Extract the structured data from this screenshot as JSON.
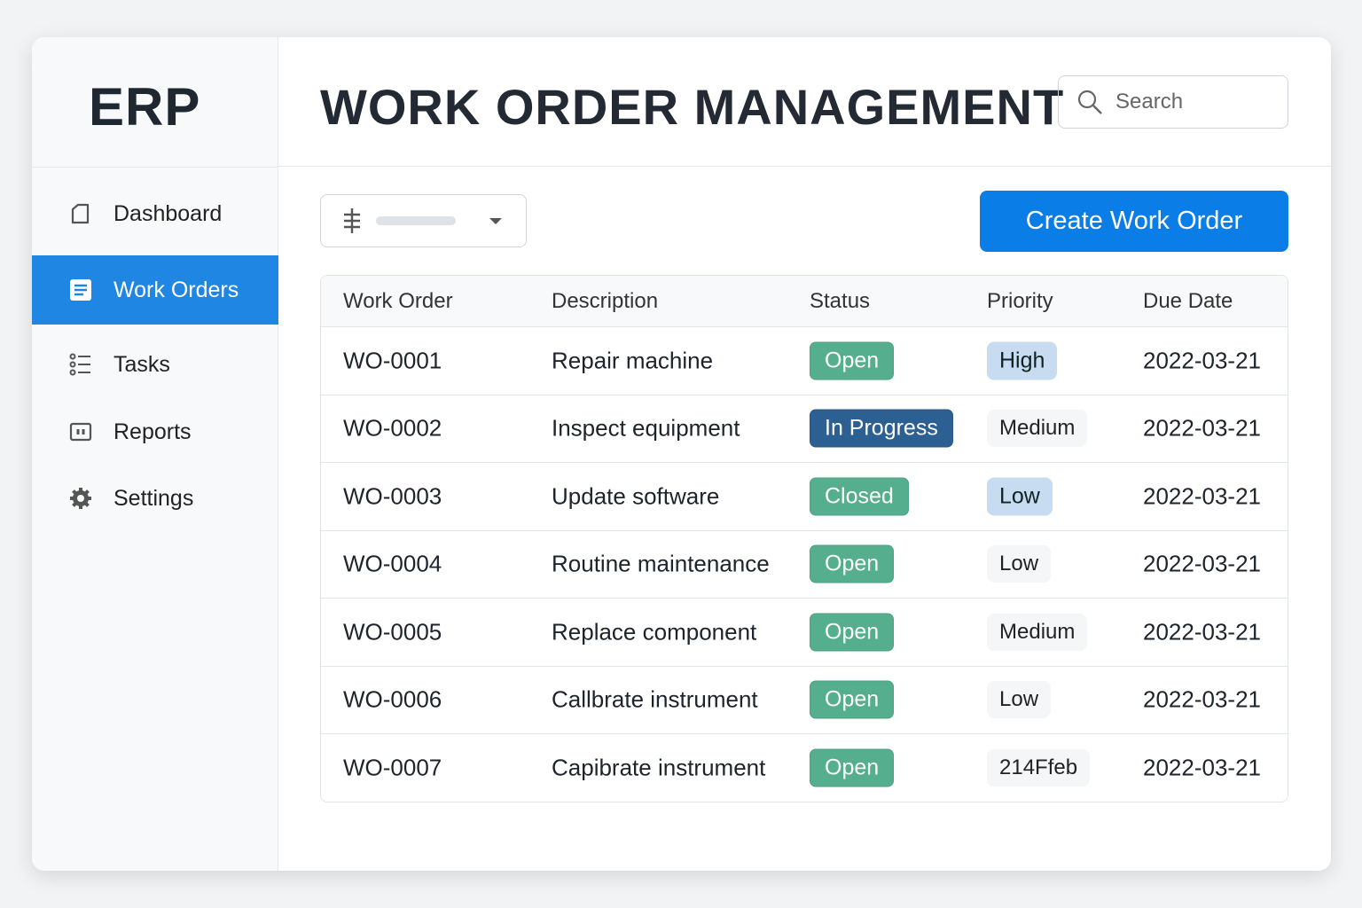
{
  "app": {
    "logo": "ERP",
    "title": "WORK ORDER MANAGEMENT"
  },
  "search": {
    "placeholder": "Search",
    "icon": "search-icon"
  },
  "sidebar": {
    "items": [
      {
        "label": "Dashboard",
        "icon": "document-icon",
        "active": false
      },
      {
        "label": "Work Orders",
        "icon": "work-orders-icon",
        "active": true
      },
      {
        "label": "Tasks",
        "icon": "list-icon",
        "active": false
      },
      {
        "label": "Reports",
        "icon": "reports-icon",
        "active": false
      },
      {
        "label": "Settings",
        "icon": "gear-icon",
        "active": false
      }
    ]
  },
  "toolbar": {
    "create_label": "Create Work Order",
    "filter_icon": "filter-icon"
  },
  "colors": {
    "accent": "#1f86e3",
    "button": "#0b7de6",
    "status_open": "#55ae8d",
    "status_in_progress": "#2c5f92",
    "priority_highlight": "#c8dcf1"
  },
  "table": {
    "headers": [
      "Work Order",
      "Description",
      "Status",
      "Priority",
      "Due Date"
    ],
    "rows": [
      {
        "id": "WO-0001",
        "description": "Repair machine",
        "status": "Open",
        "priority": "High",
        "priority_highlight": true,
        "due": "2022-03-21"
      },
      {
        "id": "WO-0002",
        "description": "Inspect equipment",
        "status": "In Progress",
        "priority": "Medium",
        "priority_highlight": false,
        "due": "2022-03-21"
      },
      {
        "id": "WO-0003",
        "description": "Update software",
        "status": "Closed",
        "priority": "Low",
        "priority_highlight": true,
        "due": "2022-03-21"
      },
      {
        "id": "WO-0004",
        "description": "Routine maintenance",
        "status": "Open",
        "priority": "Low",
        "priority_highlight": false,
        "due": "2022-03-21"
      },
      {
        "id": "WO-0005",
        "description": "Replace component",
        "status": "Open",
        "priority": "Medium",
        "priority_highlight": false,
        "due": "2022-03-21"
      },
      {
        "id": "WO-0006",
        "description": "Callbrate instrument",
        "status": "Open",
        "priority": "Low",
        "priority_highlight": false,
        "due": "2022-03-21"
      },
      {
        "id": "WO-0007",
        "description": "Capibrate instrument",
        "status": "Open",
        "priority": "214Ffeb",
        "priority_highlight": false,
        "due": "2022-03-21"
      }
    ]
  }
}
